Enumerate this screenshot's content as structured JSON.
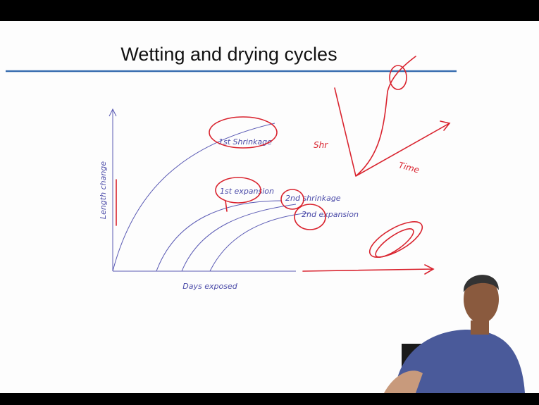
{
  "slide": {
    "title": "Wetting and drying cycles",
    "sketch": {
      "y_axis_label": "Length change",
      "x_axis_label": "Days exposed",
      "curve_labels": [
        "1st Shrinkage",
        "1st expansion",
        "2nd shrinkage",
        "2nd expansion"
      ],
      "side_sketch": {
        "y_label": "Shr",
        "x_label": "Time"
      }
    }
  }
}
